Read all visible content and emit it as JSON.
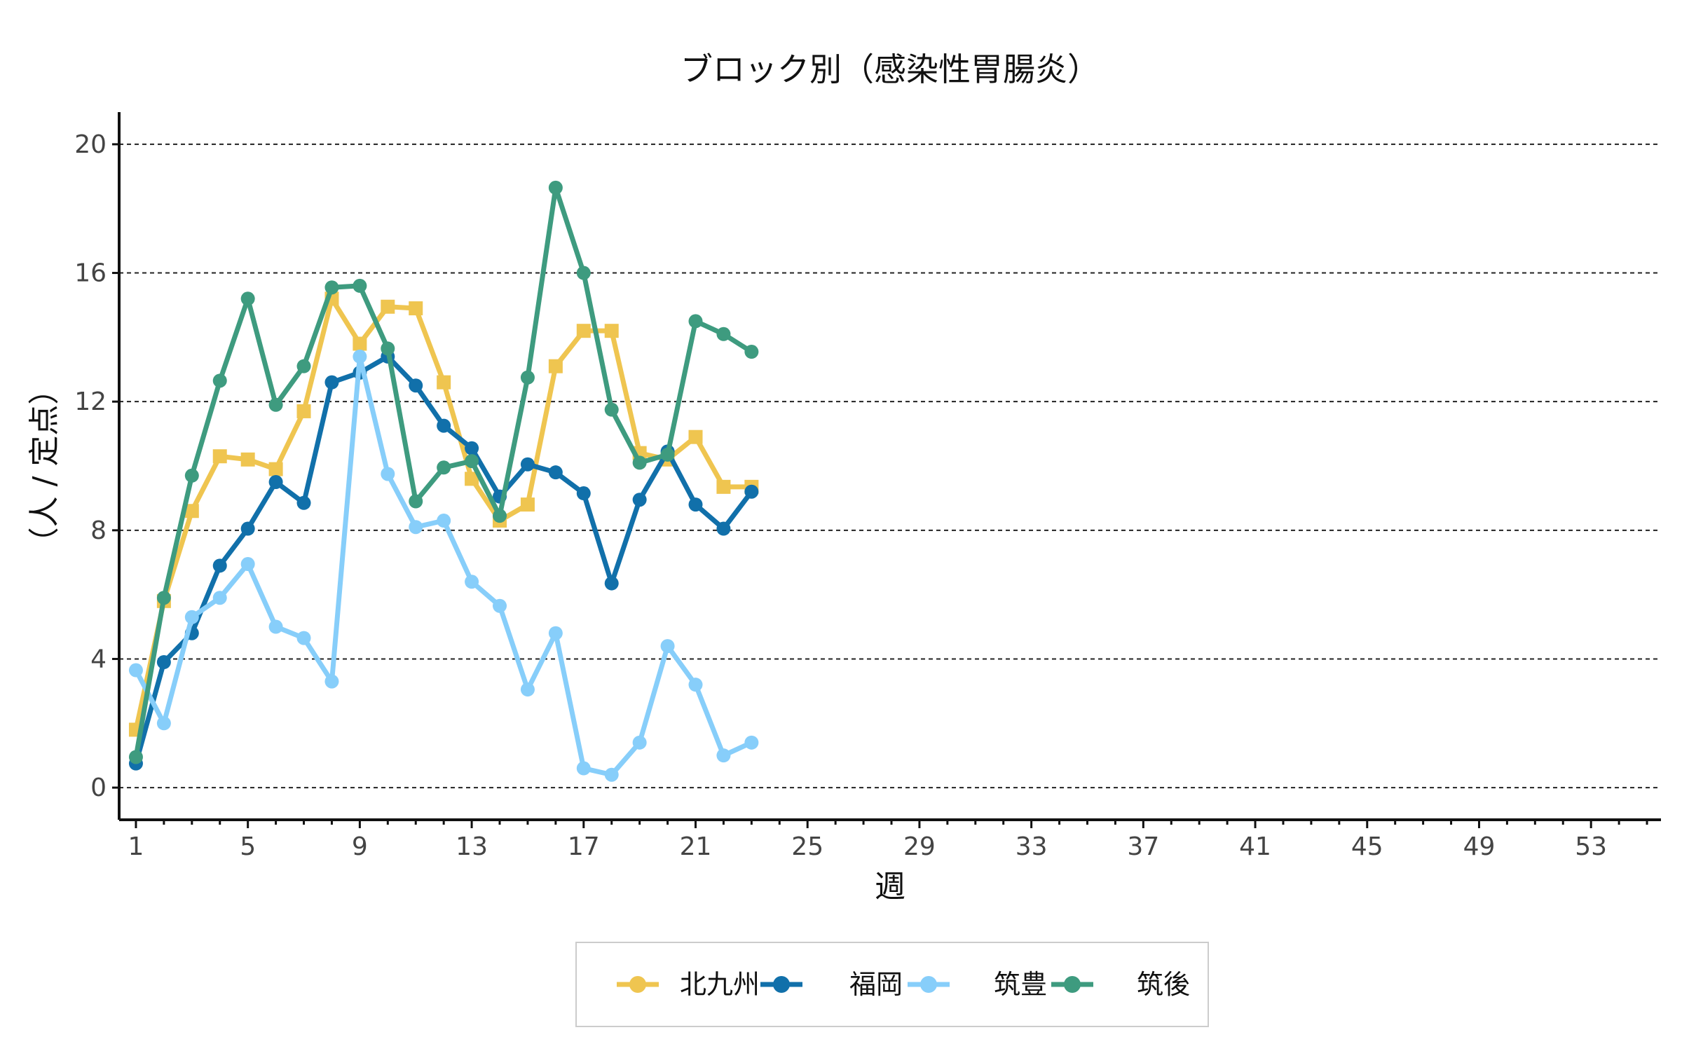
{
  "chart_data": {
    "type": "line",
    "title": "ブロック別（感染性胃腸炎）",
    "xlabel": "週",
    "ylabel": "（人 / 定点）",
    "xlim": [
      1,
      55.5
    ],
    "ylim": [
      -1,
      21
    ],
    "x_ticks": [
      1,
      5,
      9,
      13,
      17,
      21,
      25,
      29,
      33,
      37,
      41,
      45,
      49,
      53
    ],
    "y_ticks": [
      0,
      4,
      8,
      12,
      16,
      20
    ],
    "grid": "horizontal dashed",
    "legend_position": "bottom",
    "x": [
      1,
      2,
      3,
      4,
      5,
      6,
      7,
      8,
      9,
      10,
      11,
      12,
      13,
      14,
      15,
      16,
      17,
      18,
      19,
      20,
      21,
      22,
      23
    ],
    "series": [
      {
        "name": "北九州",
        "color": "#EFC550",
        "marker": "square",
        "values": [
          1.8,
          5.8,
          8.6,
          10.3,
          10.2,
          9.9,
          11.7,
          15.2,
          13.8,
          14.95,
          14.9,
          12.6,
          9.6,
          8.3,
          8.8,
          13.1,
          14.2,
          14.2,
          10.4,
          10.2,
          10.9,
          9.35,
          9.35
        ]
      },
      {
        "name": "福岡",
        "color": "#1170AA",
        "marker": "circle",
        "values": [
          0.75,
          3.9,
          4.8,
          6.9,
          8.05,
          9.5,
          8.85,
          12.6,
          12.9,
          13.4,
          12.5,
          11.25,
          10.55,
          9.05,
          10.05,
          9.8,
          9.15,
          6.35,
          8.95,
          10.45,
          8.8,
          8.05,
          9.2
        ]
      },
      {
        "name": "筑豊",
        "color": "#87CEFA",
        "marker": "circle",
        "values": [
          3.65,
          2.0,
          5.3,
          5.9,
          6.95,
          5.0,
          4.65,
          3.3,
          13.4,
          9.75,
          8.1,
          8.3,
          6.4,
          5.65,
          3.05,
          4.8,
          0.6,
          0.4,
          1.4,
          4.4,
          3.2,
          1.0,
          1.4
        ]
      },
      {
        "name": "筑後",
        "color": "#3E9B7F",
        "marker": "circle",
        "values": [
          0.95,
          5.9,
          9.7,
          12.65,
          15.2,
          11.9,
          13.1,
          15.55,
          15.6,
          13.65,
          8.9,
          9.95,
          10.15,
          8.45,
          12.75,
          18.65,
          16.0,
          11.75,
          10.1,
          10.35,
          14.5,
          14.1,
          13.55
        ]
      }
    ]
  }
}
